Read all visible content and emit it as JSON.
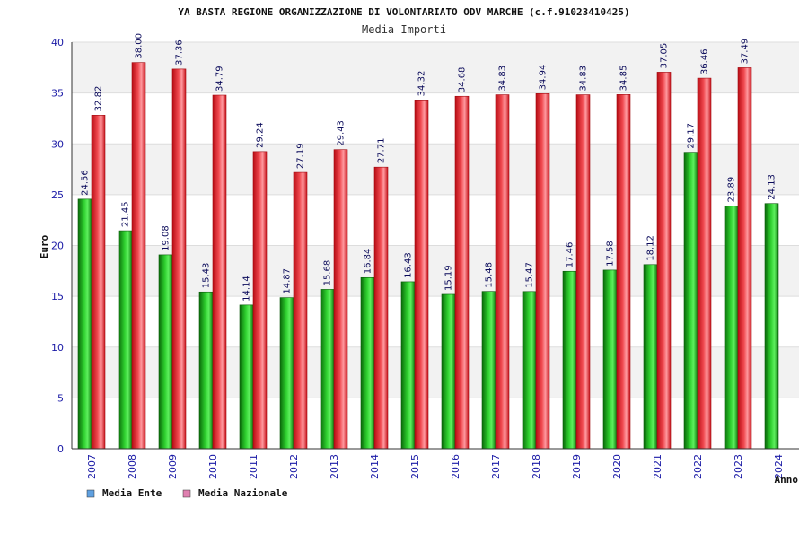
{
  "chart_data": {
    "type": "bar",
    "title": "YA BASTA  REGIONE ORGANIZZAZIONE DI VOLONTARIATO ODV MARCHE (c.f.91023410425)",
    "subtitle": "Media Importi",
    "xlabel": "Anno",
    "ylabel": "Euro",
    "ylim": [
      0,
      40
    ],
    "yticks": [
      0,
      5,
      10,
      15,
      20,
      25,
      30,
      35,
      40
    ],
    "categories": [
      "2007",
      "2008",
      "2009",
      "2010",
      "2011",
      "2012",
      "2013",
      "2014",
      "2015",
      "2016",
      "2017",
      "2018",
      "2019",
      "2020",
      "2021",
      "2022",
      "2023",
      "2024"
    ],
    "series": [
      {
        "name": "Media Ente",
        "color": "#1ea01e",
        "legend_color": "#5fa0e0",
        "values": [
          24.56,
          21.45,
          19.08,
          15.43,
          14.14,
          14.87,
          15.68,
          16.84,
          16.43,
          15.19,
          15.48,
          15.47,
          17.46,
          17.58,
          18.12,
          29.17,
          23.89,
          24.13
        ],
        "labels": [
          "24.56",
          "21.45",
          "19.08",
          "15.43",
          "14.14",
          "14.87",
          "15.68",
          "16.84",
          "16.43",
          "15.19",
          "15.48",
          "15.47",
          "17.46",
          "17.58",
          "18.12",
          "29.17",
          "23.89",
          "24.13"
        ]
      },
      {
        "name": "Media Nazionale",
        "color": "#e8202a",
        "legend_color": "#e080b0",
        "values": [
          32.82,
          38.0,
          37.36,
          34.79,
          29.24,
          27.19,
          29.43,
          27.71,
          34.32,
          34.68,
          34.83,
          34.94,
          34.83,
          34.85,
          37.05,
          36.46,
          37.49,
          null
        ],
        "labels": [
          "32.82",
          "38.00",
          "37.36",
          "34.79",
          "29.24",
          "27.19",
          "29.43",
          "27.71",
          "34.32",
          "34.68",
          "34.83",
          "34.94",
          "34.83",
          "34.85",
          "37.05",
          "36.46",
          "37.49",
          ""
        ]
      }
    ],
    "grid": true,
    "legend_position": "bottom-left"
  }
}
